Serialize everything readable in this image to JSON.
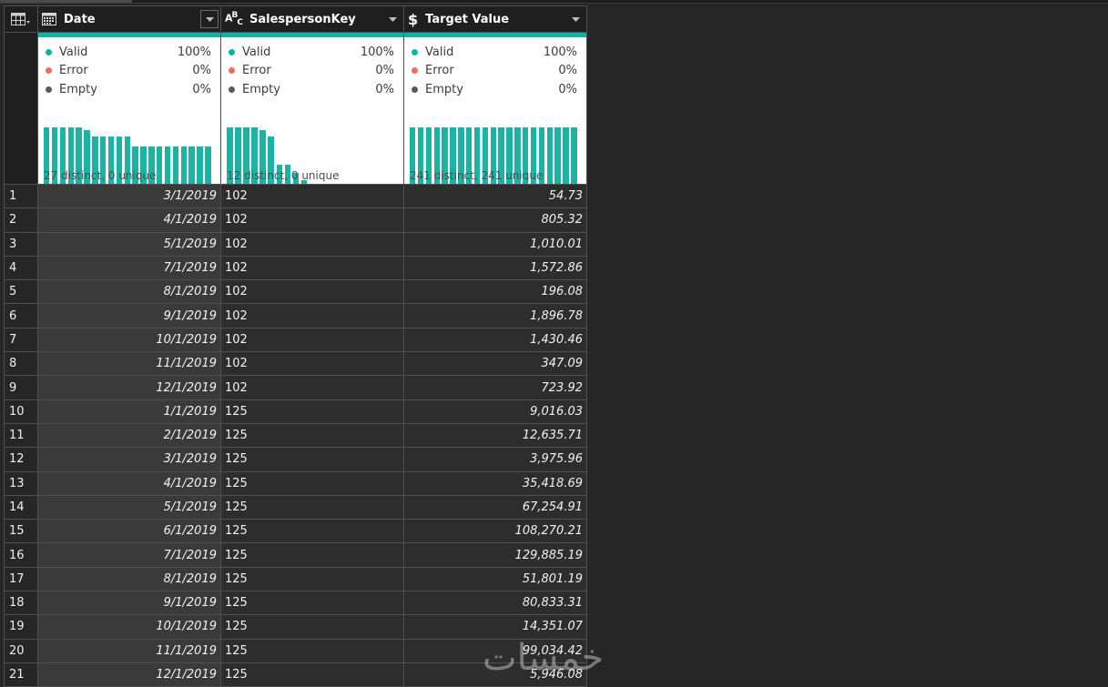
{
  "columns": [
    {
      "name": "Date",
      "type_icon": "calendar-icon"
    },
    {
      "name": "SalespersonKey",
      "type_icon": "abc-text-type-icon",
      "type_label": "ABC"
    },
    {
      "name": "Target Value",
      "type_icon": "currency-icon",
      "type_label": "$"
    }
  ],
  "profile": [
    {
      "valid": "Valid",
      "valid_pct": "100%",
      "error": "Error",
      "error_pct": "0%",
      "empty": "Empty",
      "empty_pct": "0%",
      "summary": "27 distinct, 0 unique",
      "distribution": [
        1.0,
        1.0,
        1.0,
        1.0,
        1.0,
        0.96,
        0.87,
        0.87,
        0.87,
        0.87,
        0.87,
        0.71,
        0.71,
        0.71,
        0.71,
        0.71,
        0.71,
        0.71,
        0.71,
        0.71,
        0.71
      ]
    },
    {
      "valid": "Valid",
      "valid_pct": "100%",
      "error": "Error",
      "error_pct": "0%",
      "empty": "Empty",
      "empty_pct": "0%",
      "summary": "12 distinct, 0 unique",
      "distribution": [
        1.0,
        1.0,
        1.0,
        1.0,
        0.96,
        0.87,
        0.44,
        0.44,
        0.33,
        0.22
      ]
    },
    {
      "valid": "Valid",
      "valid_pct": "100%",
      "error": "Error",
      "error_pct": "0%",
      "empty": "Empty",
      "empty_pct": "0%",
      "summary": "241 distinct, 241 unique",
      "distribution": [
        1,
        1,
        1,
        1,
        1,
        1,
        1,
        1,
        1,
        1,
        1,
        1,
        1,
        1,
        1,
        1,
        1,
        1,
        1,
        1,
        1
      ]
    }
  ],
  "status_colors": {
    "valid": "#0ab4a8",
    "error": "#f36c5e",
    "empty": "#5a5a5a"
  },
  "rows": [
    {
      "n": "1",
      "date": "3/1/2019",
      "key": "102",
      "value": "54.73"
    },
    {
      "n": "2",
      "date": "4/1/2019",
      "key": "102",
      "value": "805.32"
    },
    {
      "n": "3",
      "date": "5/1/2019",
      "key": "102",
      "value": "1,010.01"
    },
    {
      "n": "4",
      "date": "7/1/2019",
      "key": "102",
      "value": "1,572.86"
    },
    {
      "n": "5",
      "date": "8/1/2019",
      "key": "102",
      "value": "196.08"
    },
    {
      "n": "6",
      "date": "9/1/2019",
      "key": "102",
      "value": "1,896.78"
    },
    {
      "n": "7",
      "date": "10/1/2019",
      "key": "102",
      "value": "1,430.46"
    },
    {
      "n": "8",
      "date": "11/1/2019",
      "key": "102",
      "value": "347.09"
    },
    {
      "n": "9",
      "date": "12/1/2019",
      "key": "102",
      "value": "723.92"
    },
    {
      "n": "10",
      "date": "1/1/2019",
      "key": "125",
      "value": "9,016.03"
    },
    {
      "n": "11",
      "date": "2/1/2019",
      "key": "125",
      "value": "12,635.71"
    },
    {
      "n": "12",
      "date": "3/1/2019",
      "key": "125",
      "value": "3,975.96"
    },
    {
      "n": "13",
      "date": "4/1/2019",
      "key": "125",
      "value": "35,418.69"
    },
    {
      "n": "14",
      "date": "5/1/2019",
      "key": "125",
      "value": "67,254.91"
    },
    {
      "n": "15",
      "date": "6/1/2019",
      "key": "125",
      "value": "108,270.21"
    },
    {
      "n": "16",
      "date": "7/1/2019",
      "key": "125",
      "value": "129,885.19"
    },
    {
      "n": "17",
      "date": "8/1/2019",
      "key": "125",
      "value": "51,801.19"
    },
    {
      "n": "18",
      "date": "9/1/2019",
      "key": "125",
      "value": "80,833.31"
    },
    {
      "n": "19",
      "date": "10/1/2019",
      "key": "125",
      "value": "14,351.07"
    },
    {
      "n": "20",
      "date": "11/1/2019",
      "key": "125",
      "value": "99,034.42"
    },
    {
      "n": "21",
      "date": "12/1/2019",
      "key": "125",
      "value": "5,946.08"
    }
  ],
  "watermark": "خمسات"
}
